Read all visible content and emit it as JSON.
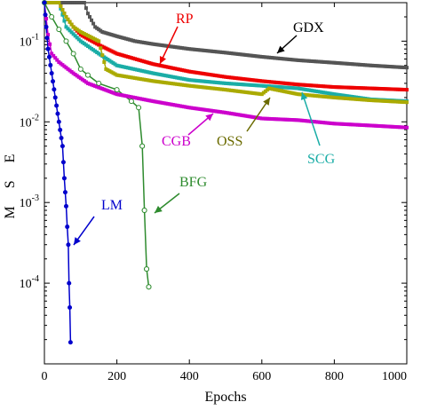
{
  "chart_data": {
    "type": "line",
    "title": "",
    "xlabel": "Epochs",
    "ylabel": "M S E",
    "xlim": [
      0,
      1000
    ],
    "ylim": [
      1e-05,
      0.3
    ],
    "yscale": "log",
    "grid": false,
    "x_ticks": [
      {
        "value": 0,
        "label": "0"
      },
      {
        "value": 200,
        "label": "200"
      },
      {
        "value": 400,
        "label": "400"
      },
      {
        "value": 600,
        "label": "600"
      },
      {
        "value": 800,
        "label": "800"
      },
      {
        "value": 1000,
        "label": "1000"
      }
    ],
    "y_ticks": [
      {
        "value": 0.1,
        "base": "10",
        "exp": "-1"
      },
      {
        "value": 0.01,
        "base": "10",
        "exp": "-2"
      },
      {
        "value": 0.001,
        "base": "10",
        "exp": "-3"
      },
      {
        "value": 0.0001,
        "base": "10",
        "exp": "-4"
      }
    ],
    "series": [
      {
        "name": "GDX",
        "color": "#555555",
        "marker": "square",
        "x": [
          0,
          110,
          120,
          140,
          160,
          200,
          250,
          300,
          400,
          500,
          600,
          700,
          800,
          900,
          1000
        ],
        "y": [
          0.3,
          0.3,
          0.22,
          0.15,
          0.13,
          0.115,
          0.1,
          0.092,
          0.08,
          0.072,
          0.064,
          0.058,
          0.054,
          0.05,
          0.047
        ]
      },
      {
        "name": "RP",
        "color": "#ee0000",
        "marker": "square",
        "x": [
          0,
          40,
          60,
          80,
          100,
          150,
          200,
          300,
          400,
          500,
          600,
          700,
          800,
          900,
          1000
        ],
        "y": [
          0.3,
          0.3,
          0.2,
          0.15,
          0.12,
          0.09,
          0.07,
          0.052,
          0.042,
          0.036,
          0.032,
          0.029,
          0.027,
          0.026,
          0.025
        ]
      },
      {
        "name": "SCG",
        "color": "#1aada6",
        "marker": "square",
        "x": [
          0,
          40,
          60,
          100,
          150,
          200,
          300,
          400,
          500,
          600,
          700,
          800,
          900,
          1000
        ],
        "y": [
          0.3,
          0.3,
          0.15,
          0.1,
          0.07,
          0.05,
          0.04,
          0.033,
          0.03,
          0.028,
          0.026,
          0.022,
          0.019,
          0.018
        ]
      },
      {
        "name": "OSS",
        "color": "#aaaa00",
        "marker": "square",
        "x": [
          0,
          40,
          60,
          80,
          100,
          150,
          170,
          200,
          300,
          400,
          500,
          600,
          620,
          700,
          800,
          900,
          1000
        ],
        "y": [
          0.3,
          0.3,
          0.2,
          0.15,
          0.13,
          0.1,
          0.045,
          0.038,
          0.032,
          0.028,
          0.025,
          0.022,
          0.026,
          0.022,
          0.02,
          0.0185,
          0.0175
        ]
      },
      {
        "name": "CGB",
        "color": "#cc00cc",
        "marker": "square",
        "x": [
          0,
          10,
          20,
          40,
          80,
          120,
          200,
          300,
          400,
          500,
          600,
          700,
          800,
          900,
          1000
        ],
        "y": [
          0.3,
          0.12,
          0.07,
          0.055,
          0.04,
          0.03,
          0.022,
          0.018,
          0.015,
          0.013,
          0.011,
          0.0105,
          0.0095,
          0.009,
          0.0085
        ]
      },
      {
        "name": "BFG",
        "color": "#2e8b2e",
        "marker": "circle",
        "x": [
          0,
          20,
          40,
          60,
          80,
          100,
          120,
          150,
          200,
          240,
          260,
          270,
          276,
          282,
          288
        ],
        "y": [
          0.3,
          0.2,
          0.14,
          0.1,
          0.07,
          0.045,
          0.038,
          0.03,
          0.025,
          0.018,
          0.015,
          0.005,
          0.0008,
          0.00015,
          9e-05
        ]
      },
      {
        "name": "LM",
        "color": "#0000cc",
        "marker": "circle",
        "x": [
          0,
          5,
          10,
          20,
          30,
          40,
          50,
          55,
          60,
          63,
          66,
          68,
          70,
          72
        ],
        "y": [
          0.3,
          0.15,
          0.08,
          0.04,
          0.02,
          0.01,
          0.005,
          0.002,
          0.0009,
          0.0005,
          0.0003,
          0.0001,
          5e-05,
          1.85e-05
        ]
      }
    ],
    "annotations": [
      {
        "text": "GDX",
        "color": "#000000"
      },
      {
        "text": "RP",
        "color": "#ee0000"
      },
      {
        "text": "CGB",
        "color": "#cc00cc"
      },
      {
        "text": "OSS",
        "color": "#6b6b00"
      },
      {
        "text": "SCG",
        "color": "#1aada6"
      },
      {
        "text": "BFG",
        "color": "#2e8b2e"
      },
      {
        "text": "LM",
        "color": "#0000cc"
      }
    ]
  }
}
